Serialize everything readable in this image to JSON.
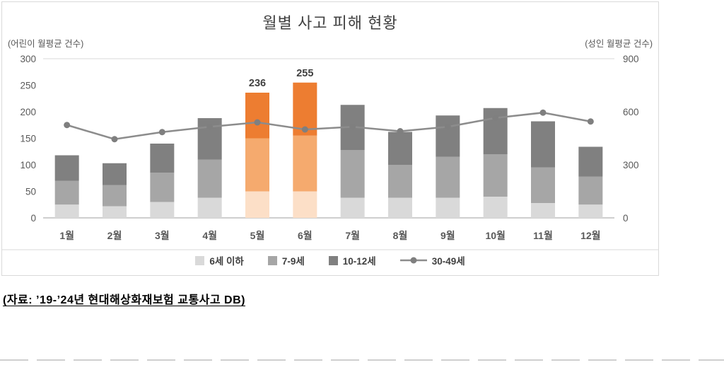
{
  "page": {
    "source_note": "(자료: ’19-’24년 현대해상화재보험 교통사고 DB)"
  },
  "chart": {
    "title": "월별 사고 피해 현황",
    "left_axis_caption": "(어린이 월평균 건수)",
    "right_axis_caption": "(성인 월평균 건수)"
  },
  "chart_data": {
    "type": "bar",
    "subtype": "stacked-bar-with-line",
    "title": "월별 사고 피해 현황",
    "categories": [
      "1월",
      "2월",
      "3월",
      "4월",
      "5월",
      "6월",
      "7월",
      "8월",
      "9월",
      "10월",
      "11월",
      "12월"
    ],
    "series": [
      {
        "name": "6세 이하",
        "type": "bar",
        "axis": "left",
        "values": [
          25,
          22,
          30,
          38,
          50,
          50,
          38,
          38,
          38,
          40,
          28,
          25
        ]
      },
      {
        "name": "7-9세",
        "type": "bar",
        "axis": "left",
        "values": [
          45,
          40,
          55,
          72,
          100,
          105,
          90,
          62,
          77,
          80,
          67,
          53
        ]
      },
      {
        "name": "10-12세",
        "type": "bar",
        "axis": "left",
        "values": [
          48,
          41,
          55,
          78,
          86,
          100,
          85,
          62,
          78,
          87,
          87,
          56
        ]
      },
      {
        "name": "30-49세",
        "type": "line",
        "axis": "right",
        "values": [
          525,
          445,
          485,
          515,
          540,
          500,
          515,
          490,
          515,
          565,
          595,
          545
        ]
      }
    ],
    "bar_totals": [
      118,
      103,
      140,
      188,
      236,
      255,
      213,
      162,
      193,
      207,
      182,
      134
    ],
    "bar_labels": [
      "",
      "",
      "",
      "",
      "236",
      "255",
      "",
      "",
      "",
      "",
      "",
      ""
    ],
    "highlight_indices": [
      4,
      5
    ],
    "left_axis": {
      "caption": "(어린이 월평균 건수)",
      "min": 0,
      "max": 300,
      "step": 50
    },
    "right_axis": {
      "caption": "(성인 월평균 건수)",
      "min": 0,
      "max": 900,
      "step": 300
    },
    "legend_position": "bottom",
    "grid": false,
    "colors": {
      "bar_gray": [
        "#d9d9d9",
        "#a6a6a6",
        "#808080"
      ],
      "bar_highlight": [
        "#fcdfc7",
        "#f5aa6e",
        "#ed7d31"
      ],
      "line": "#8c8c8c",
      "marker": "#7f7f7f",
      "axis_text": "#595959",
      "grid_line": "#d9d9d9",
      "baseline": "#bfbfbf",
      "title_text": "#3f3f3f",
      "data_label_text": "#404040"
    }
  }
}
